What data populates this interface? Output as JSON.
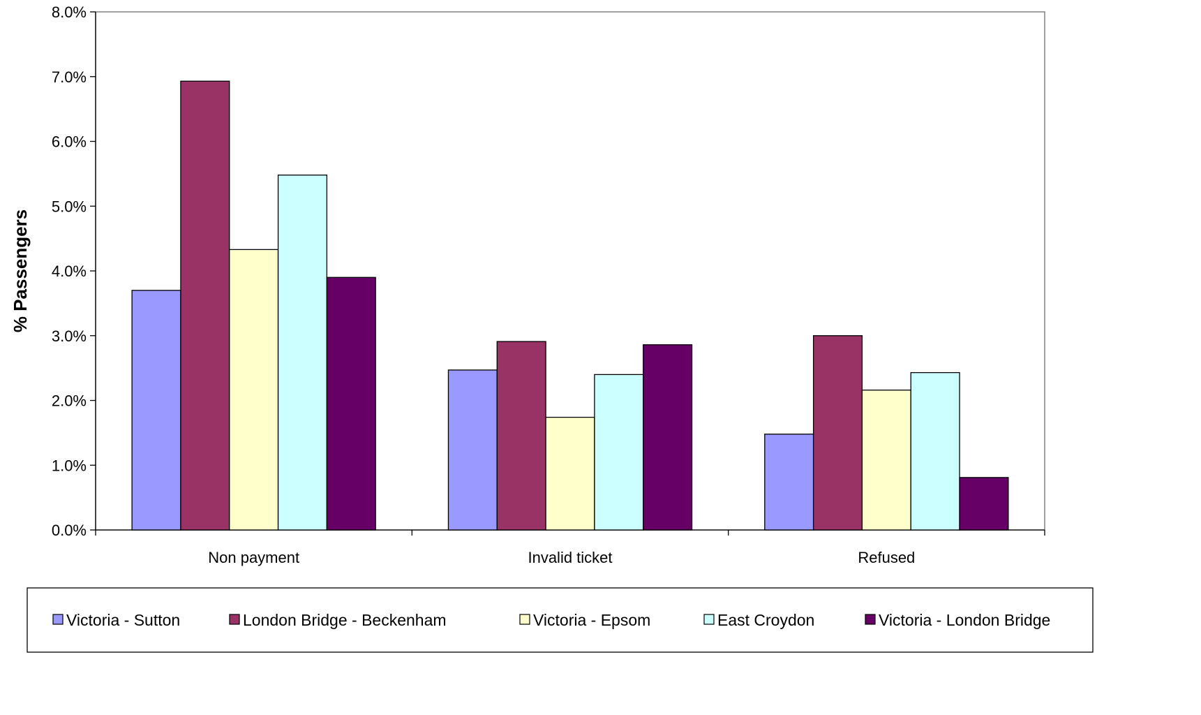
{
  "chart_data": {
    "type": "bar",
    "title": "",
    "xlabel": "",
    "ylabel": "% Passengers",
    "ylim": [
      0,
      8.0
    ],
    "yticks": [
      "0.0%",
      "1.0%",
      "2.0%",
      "3.0%",
      "4.0%",
      "5.0%",
      "6.0%",
      "7.0%",
      "8.0%"
    ],
    "categories": [
      "Non payment",
      "Invalid ticket",
      "Refused"
    ],
    "series": [
      {
        "name": "Victoria - Sutton",
        "color": "#9999FF",
        "values": [
          3.7,
          2.47,
          1.48
        ]
      },
      {
        "name": "London Bridge - Beckenham",
        "color": "#993366",
        "values": [
          6.93,
          2.91,
          3.0
        ]
      },
      {
        "name": "Victoria - Epsom",
        "color": "#FFFFCC",
        "values": [
          4.33,
          1.74,
          2.16
        ]
      },
      {
        "name": "East Croydon",
        "color": "#CCFFFF",
        "values": [
          5.48,
          2.4,
          2.43
        ]
      },
      {
        "name": "Victoria - London Bridge",
        "color": "#660066",
        "values": [
          3.9,
          2.86,
          0.81
        ]
      }
    ],
    "grid": false,
    "legend_position": "bottom"
  }
}
